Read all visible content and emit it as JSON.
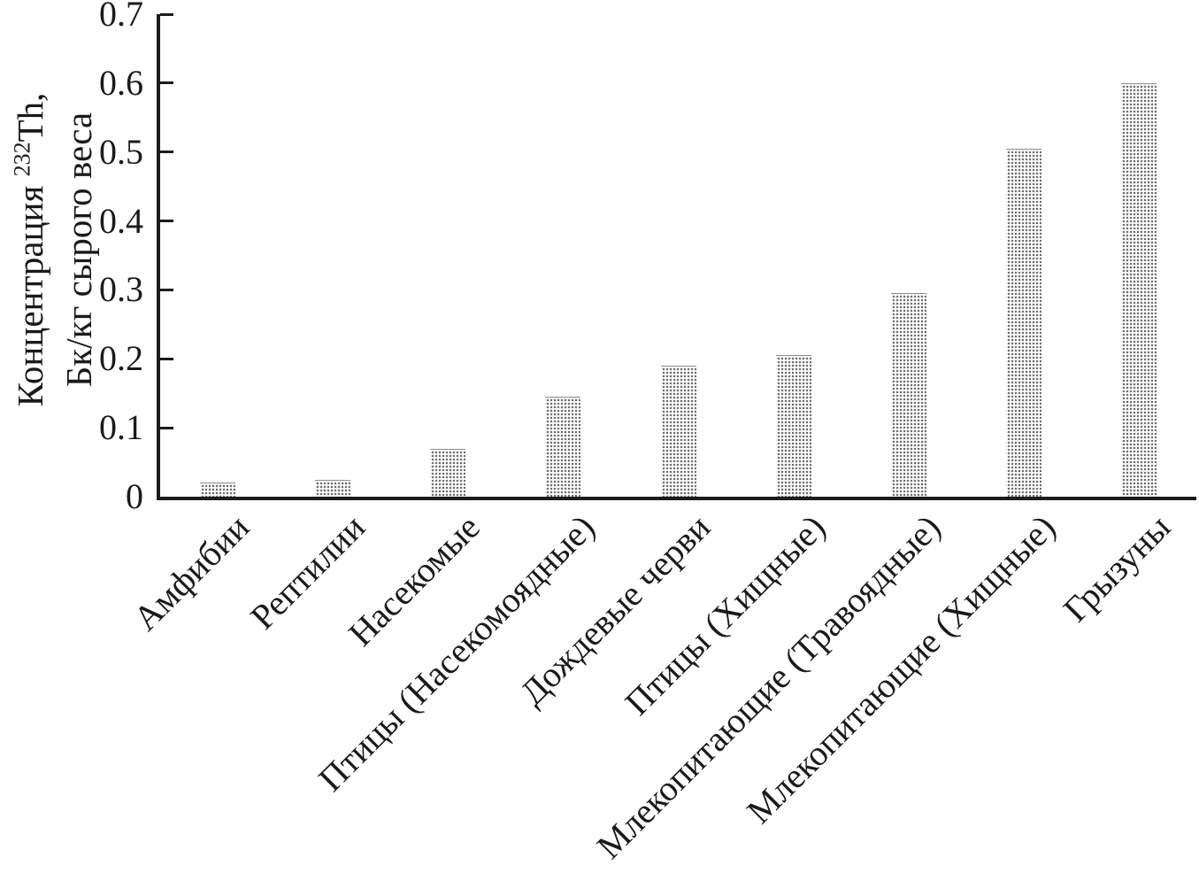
{
  "chart_data": {
    "type": "bar",
    "title": "",
    "categories": [
      "Амфибии",
      "Рептилии",
      "Насекомые",
      "Птицы (Насекомоядные)",
      "Дождевые черви",
      "Птицы (Хищные)",
      "Млекопитающие (Травоядные)",
      "Млекопитающие (Хищные)",
      "Грызуны"
    ],
    "values": [
      0.02,
      0.025,
      0.07,
      0.145,
      0.19,
      0.205,
      0.295,
      0.505,
      0.6
    ],
    "xlabel": "",
    "ylabel": {
      "line1_prefix": "Концентрация ",
      "isotope_superscript": "232",
      "element": "Th,",
      "line2": "Бк/кг сырого веса"
    },
    "ylim": [
      0,
      0.7
    ],
    "yticks": [
      0,
      0.1,
      0.2,
      0.3,
      0.4,
      0.5,
      0.6,
      0.7
    ],
    "ytick_labels": [
      "0",
      "0.1",
      "0.2",
      "0.3",
      "0.4",
      "0.5",
      "0.6",
      "0.7"
    ],
    "grid": false,
    "legend": "none",
    "bar_fill": "dotted-stipple-pattern",
    "colors": {
      "axis": "#1c1c1c",
      "text": "#1a1a1a",
      "bar_dot": "#6e6e6e",
      "background": "#ffffff"
    }
  }
}
